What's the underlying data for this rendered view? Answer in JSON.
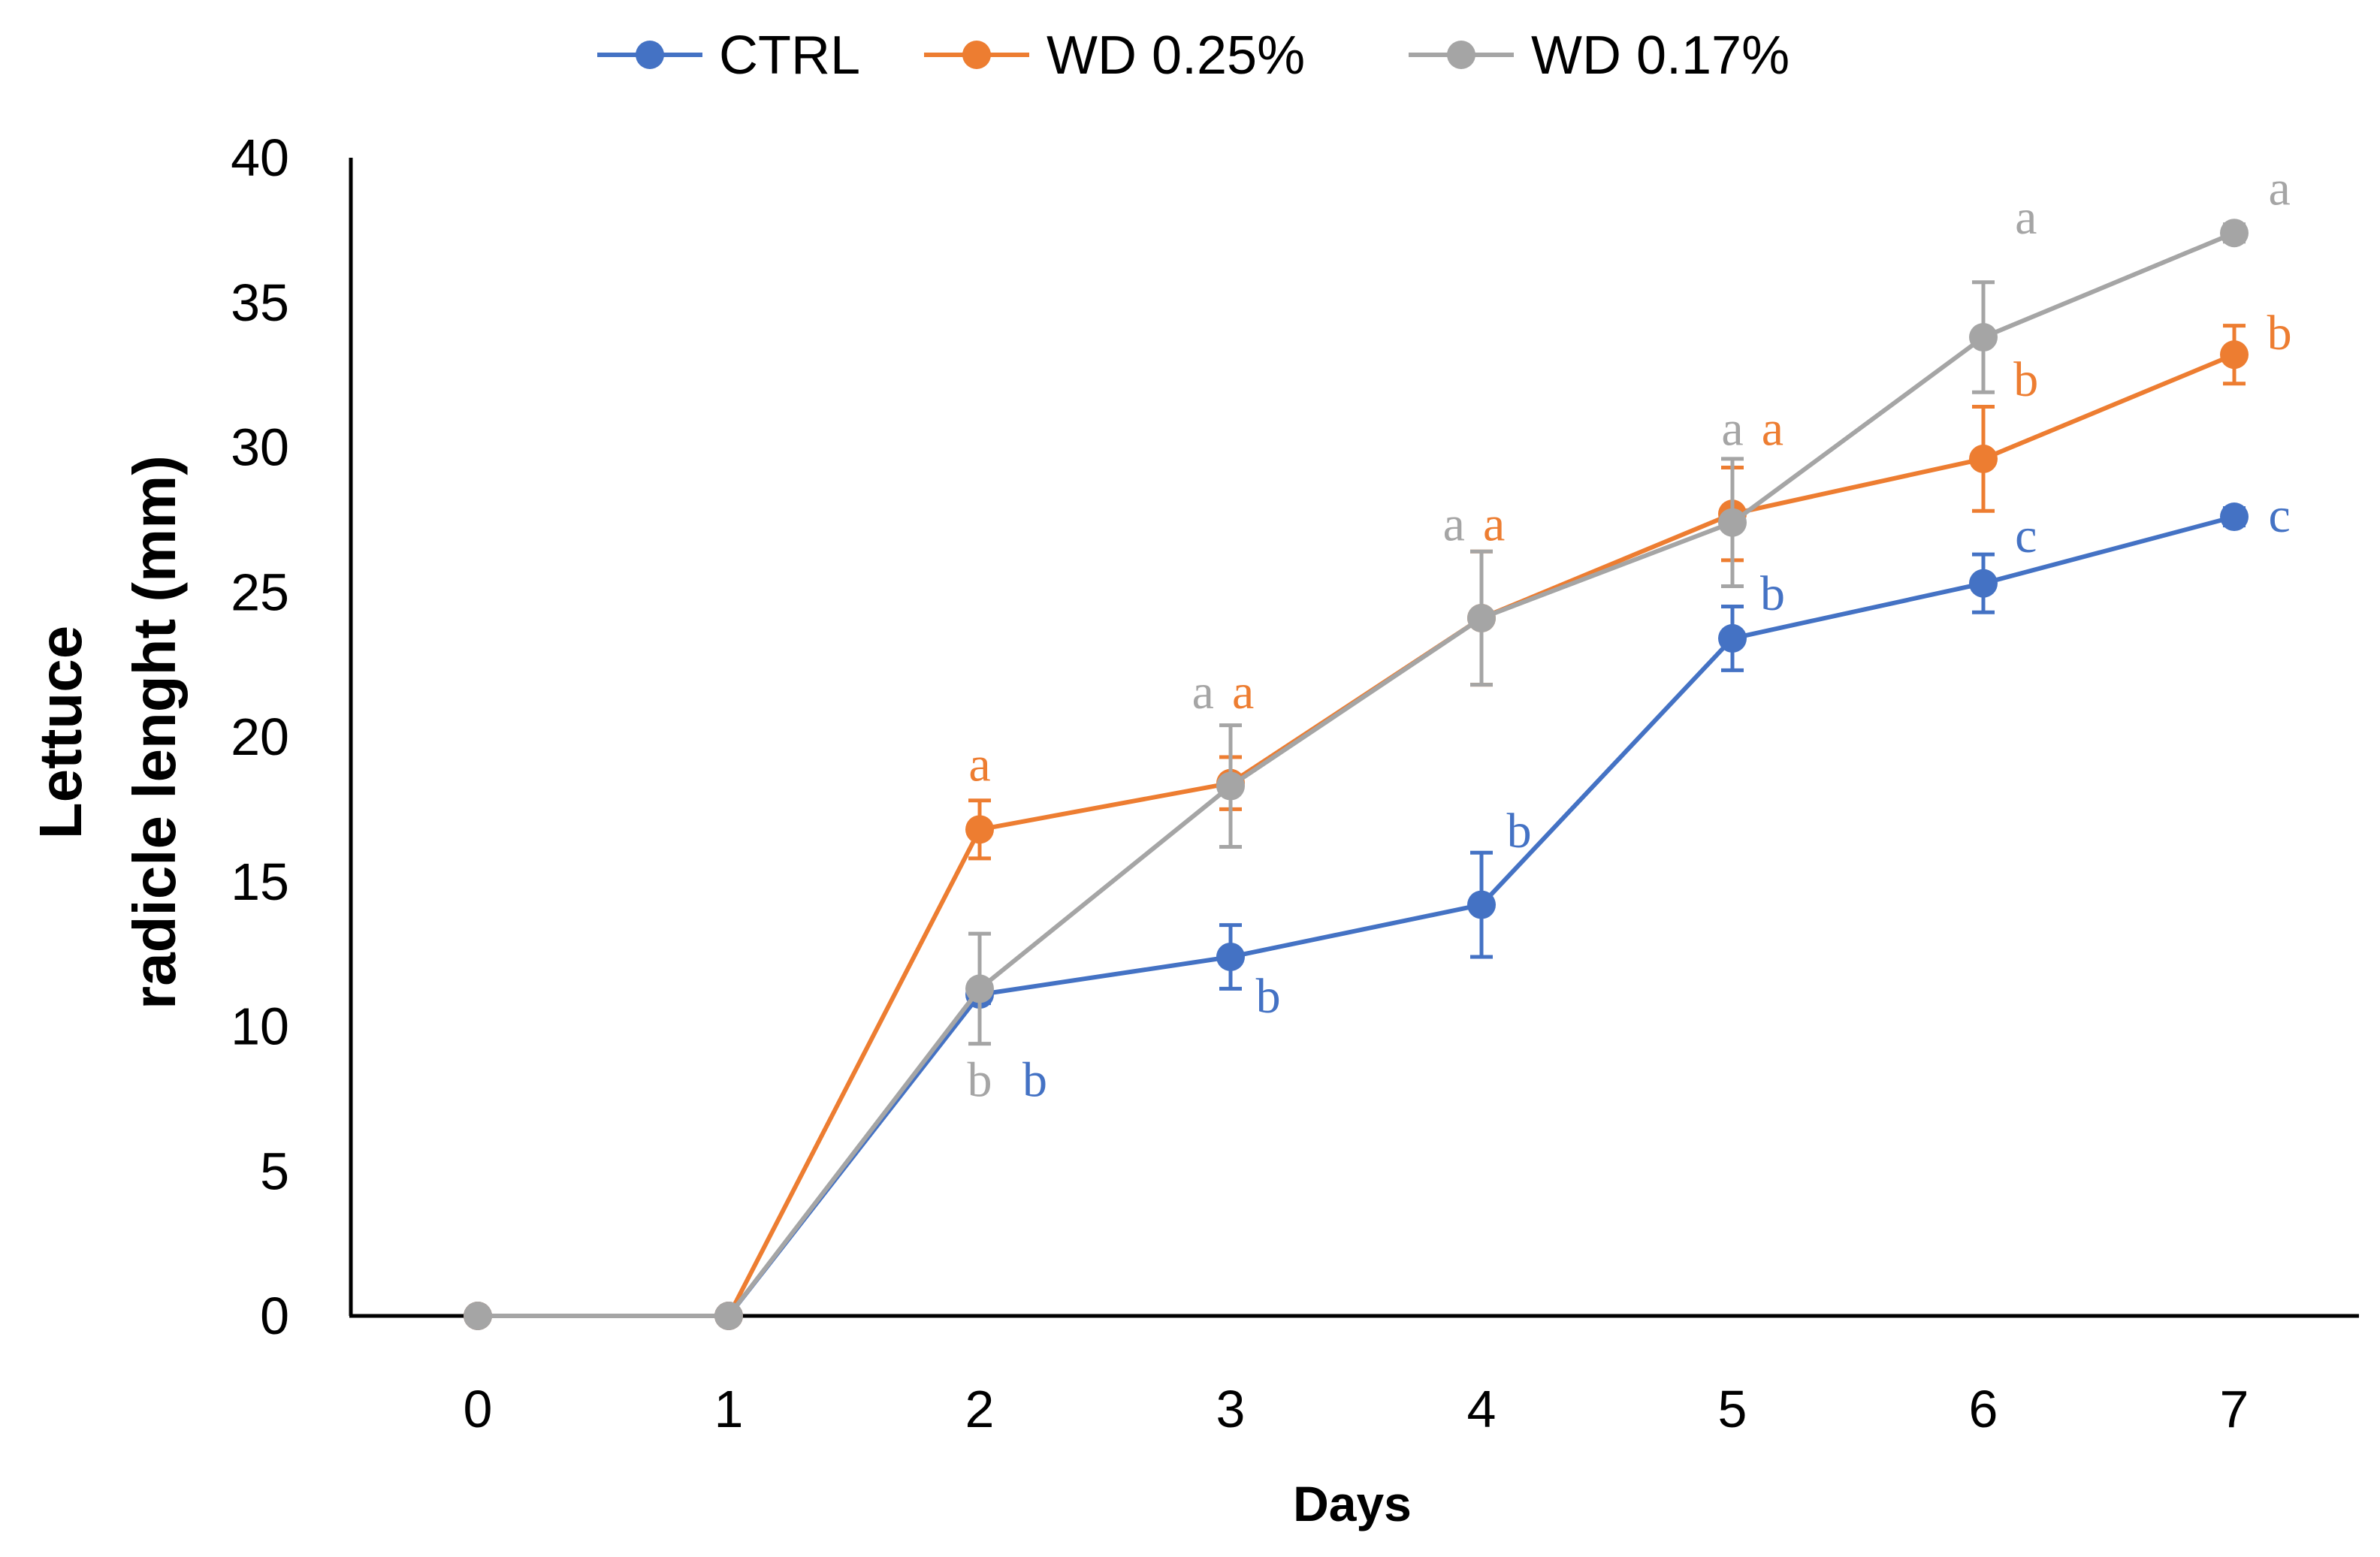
{
  "chart_data": {
    "type": "line",
    "title": "",
    "xlabel": "Days",
    "ylabel_line1": "Lettuce",
    "ylabel_line2": "radicle lenght (mm)",
    "x": [
      0,
      1,
      2,
      3,
      4,
      5,
      6,
      7
    ],
    "xlim": [
      0,
      7
    ],
    "ylim": [
      0,
      40
    ],
    "yticks": [
      0,
      5,
      10,
      15,
      20,
      25,
      30,
      35,
      40
    ],
    "grid": false,
    "legend_position": "top",
    "series": [
      {
        "name": "CTRL",
        "color": "#4472C4",
        "values": [
          0,
          0,
          11.1,
          12.4,
          14.2,
          23.4,
          25.3,
          27.6
        ],
        "errors": [
          0,
          0,
          0.3,
          1.1,
          1.8,
          1.1,
          1.0,
          0.3
        ]
      },
      {
        "name": "WD 0.25%",
        "color": "#ED7D31",
        "values": [
          0,
          0,
          16.8,
          18.4,
          24.1,
          27.7,
          29.6,
          33.2
        ],
        "errors": [
          0,
          0,
          1.0,
          0.9,
          2.3,
          1.6,
          1.8,
          1.0
        ]
      },
      {
        "name": "WD 0.17%",
        "color": "#A5A5A5",
        "values": [
          0,
          0,
          11.3,
          18.3,
          24.1,
          27.4,
          33.8,
          37.4
        ],
        "errors": [
          0,
          0,
          1.9,
          2.1,
          2.3,
          2.2,
          1.9,
          0.3
        ]
      }
    ],
    "annotations": [
      {
        "text": "a",
        "series": "WD 0.25%",
        "x": 2,
        "y": 19.0,
        "placement": "center"
      },
      {
        "text": "b",
        "series": "WD 0.17%",
        "x": 2,
        "y": 8.1,
        "placement": "center"
      },
      {
        "text": "b",
        "series": "CTRL",
        "x": 2.22,
        "y": 8.1,
        "placement": "center"
      },
      {
        "text": "a",
        "series": "WD 0.17%",
        "x": 2.89,
        "y": 21.5,
        "placement": "center"
      },
      {
        "text": "a",
        "series": "WD 0.25%",
        "x": 3.05,
        "y": 21.5,
        "placement": "center"
      },
      {
        "text": "b",
        "series": "CTRL",
        "x": 3.15,
        "y": 11.0,
        "placement": "center"
      },
      {
        "text": "a",
        "series": "WD 0.17%",
        "x": 3.89,
        "y": 27.3,
        "placement": "center"
      },
      {
        "text": "a",
        "series": "WD 0.25%",
        "x": 4.05,
        "y": 27.3,
        "placement": "center"
      },
      {
        "text": "b",
        "series": "CTRL",
        "x": 4.15,
        "y": 16.7,
        "placement": "center"
      },
      {
        "text": "a",
        "series": "WD 0.17%",
        "x": 5.0,
        "y": 30.6,
        "placement": "center"
      },
      {
        "text": "a",
        "series": "WD 0.25%",
        "x": 5.16,
        "y": 30.6,
        "placement": "center"
      },
      {
        "text": "b",
        "series": "CTRL",
        "x": 5.16,
        "y": 24.9,
        "placement": "center"
      },
      {
        "text": "a",
        "series": "WD 0.17%",
        "x": 6.17,
        "y": 37.9,
        "placement": "center"
      },
      {
        "text": "b",
        "series": "WD 0.25%",
        "x": 6.17,
        "y": 32.3,
        "placement": "center"
      },
      {
        "text": "c",
        "series": "CTRL",
        "x": 6.17,
        "y": 26.9,
        "placement": "center"
      },
      {
        "text": "a",
        "series": "WD 0.17%",
        "x": 7.18,
        "y": 38.9,
        "placement": "center"
      },
      {
        "text": "b",
        "series": "WD 0.25%",
        "x": 7.18,
        "y": 33.9,
        "placement": "center"
      },
      {
        "text": "c",
        "series": "CTRL",
        "x": 7.18,
        "y": 27.6,
        "placement": "center"
      }
    ]
  }
}
